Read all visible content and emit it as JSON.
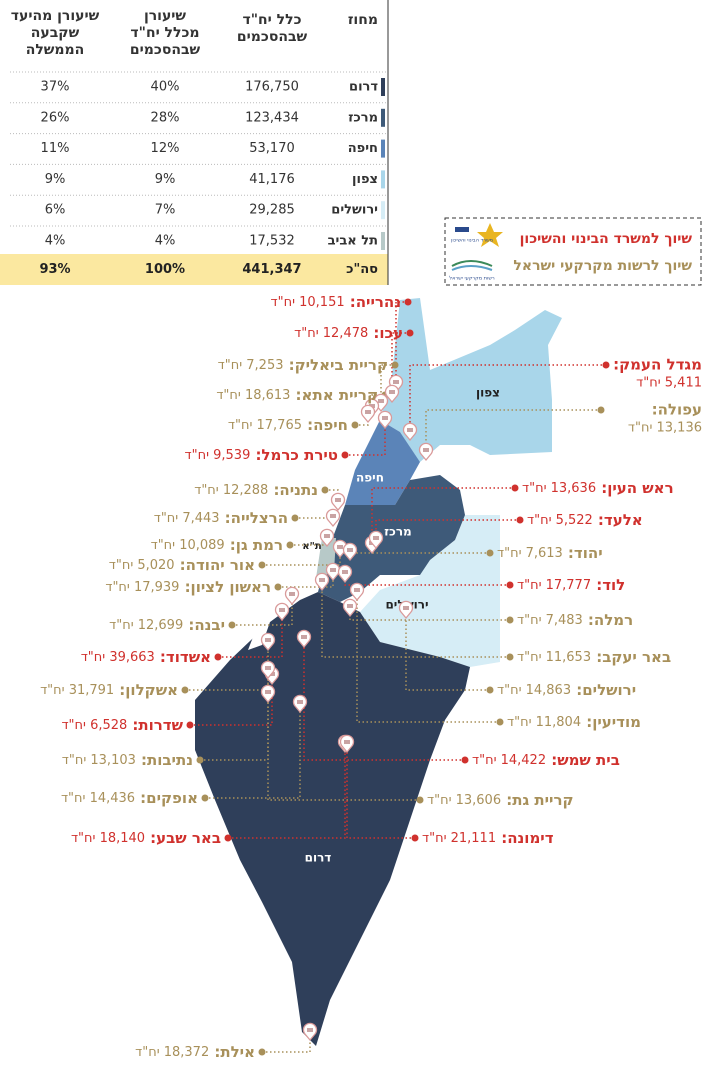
{
  "table": {
    "headers": [
      [
        "מחוז"
      ],
      [
        "כלל יח\"ד",
        "שבהסכמים"
      ],
      [
        "שיעורן",
        "מכלל יח\"ד",
        "שבהסכמים"
      ],
      [
        "שיעורן מהיעד",
        "שקבעה",
        "הממשלה"
      ]
    ],
    "rows": [
      {
        "cells": [
          "דרום",
          "176,750",
          "40%",
          "37%"
        ],
        "color": "#2f3f5a"
      },
      {
        "cells": [
          "מרכז",
          "123,434",
          "28%",
          "26%"
        ],
        "color": "#3e5a79"
      },
      {
        "cells": [
          "חיפה",
          "53,170",
          "12%",
          "11%"
        ],
        "color": "#5b84b8"
      },
      {
        "cells": [
          "צפון",
          "41,176",
          "9%",
          "9%"
        ],
        "color": "#a9d6ea"
      },
      {
        "cells": [
          "ירושלים",
          "29,285",
          "7%",
          "6%"
        ],
        "color": "#d6edf6"
      },
      {
        "cells": [
          "תל אביב",
          "17,532",
          "4%",
          "4%"
        ],
        "color": "#b7c9c8"
      }
    ],
    "total": [
      "סה\"כ",
      "441,347",
      "100%",
      "93%"
    ]
  },
  "legend": [
    {
      "label": "שיוך למשרד הבינוי והשיכון",
      "color": "#d0312d"
    },
    {
      "label": "שיוך לרשות מקרקעי ישראל",
      "color": "#a8905a"
    }
  ],
  "logos": [
    "משרד הבינוי והשיכון",
    "רשות מקרקעי ישראל"
  ],
  "regions": [
    "צפון",
    "חיפה",
    "מרכז",
    "ת\"א",
    "ירושלים",
    "דרום"
  ],
  "cities": [
    {
      "name": "נהרייה:",
      "units": "10,151 יח\"ד",
      "legend": 0
    },
    {
      "name": "עכו:",
      "units": "12,478 יח\"ד",
      "legend": 0
    },
    {
      "name": "קריית ביאליק:",
      "units": "7,253 יח\"ד",
      "legend": 1
    },
    {
      "name": "קריית אתא:",
      "units": "18,613 יח\"ד",
      "legend": 1
    },
    {
      "name": "חיפה:",
      "units": "17,765 יח\"ד",
      "legend": 1
    },
    {
      "name": "טירת כרמל:",
      "units": "9,539 יח\"ד",
      "legend": 0
    },
    {
      "name": "נתניה:",
      "units": "12,288 יח\"ד",
      "legend": 1
    },
    {
      "name": "הרצלייה:",
      "units": "7,443 יח\"ד",
      "legend": 1
    },
    {
      "name": "רמת גן:",
      "units": "10,089 יח\"ד",
      "legend": 1
    },
    {
      "name": "אור יהודה:",
      "units": "5,020 יח\"ד",
      "legend": 1
    },
    {
      "name": "ראשון לציון:",
      "units": "17,939 יח\"ד",
      "legend": 1
    },
    {
      "name": "יבנה:",
      "units": "12,699 יח\"ד",
      "legend": 1
    },
    {
      "name": "אשדוד:",
      "units": "39,663 יח\"ד",
      "legend": 0
    },
    {
      "name": "אשקלון:",
      "units": "31,791 יח\"ד",
      "legend": 1
    },
    {
      "name": "שדרות:",
      "units": "6,528 יח\"ד",
      "legend": 0
    },
    {
      "name": "נתיבות:",
      "units": "13,103 יח\"ד",
      "legend": 1
    },
    {
      "name": "אופקים:",
      "units": "14,436 יח\"ד",
      "legend": 1
    },
    {
      "name": "באר שבע:",
      "units": "18,140 יח\"ד",
      "legend": 0
    },
    {
      "name": "אילת:",
      "units": "18,372 יח\"ד",
      "legend": 1
    },
    {
      "name": "מגדל העמק:",
      "units": "5,411 יח\"ד",
      "legend": 0
    },
    {
      "name": "עפולה:",
      "units": "13,136 יח\"ד",
      "legend": 1
    },
    {
      "name": "ראש העין:",
      "units": "13,636 יח\"ד",
      "legend": 0
    },
    {
      "name": "אלעד:",
      "units": "5,522 יח\"ד",
      "legend": 0
    },
    {
      "name": "יהוד:",
      "units": "7,613 יח\"ד",
      "legend": 1
    },
    {
      "name": "לוד:",
      "units": "17,777 יח\"ד",
      "legend": 0
    },
    {
      "name": "רמלה:",
      "units": "7,483 יח\"ד",
      "legend": 1
    },
    {
      "name": "באר יעקב:",
      "units": "11,653 יח\"ד",
      "legend": 1
    },
    {
      "name": "ירושלים:",
      "units": "14,863 יח\"ד",
      "legend": 1
    },
    {
      "name": "מודיעין:",
      "units": "11,804 יח\"ד",
      "legend": 1
    },
    {
      "name": "בית שמש:",
      "units": "14,422 יח\"ד",
      "legend": 0
    },
    {
      "name": "קריית גת:",
      "units": "13,606 יח\"ד",
      "legend": 1
    },
    {
      "name": "דימונה:",
      "units": "21,111 יח\"ד",
      "legend": 0
    }
  ]
}
